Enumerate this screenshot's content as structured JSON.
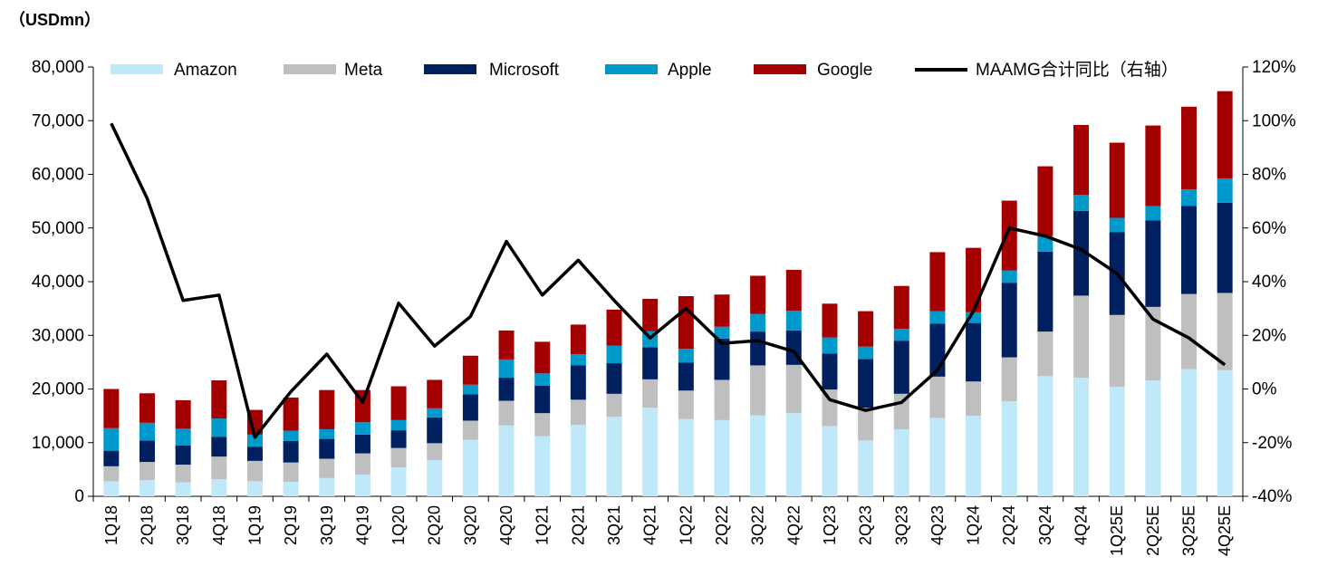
{
  "unit_label": "（USDmn）",
  "chart_data": {
    "type": "bar",
    "stacked": true,
    "categories": [
      "1Q18",
      "2Q18",
      "3Q18",
      "4Q18",
      "1Q19",
      "2Q19",
      "3Q19",
      "4Q19",
      "1Q20",
      "2Q20",
      "3Q20",
      "4Q20",
      "1Q21",
      "2Q21",
      "3Q21",
      "4Q21",
      "1Q22",
      "2Q22",
      "3Q22",
      "4Q22",
      "1Q23",
      "2Q23",
      "3Q23",
      "4Q23",
      "1Q24",
      "2Q24",
      "3Q24",
      "4Q24",
      "1Q25E",
      "2Q25E",
      "3Q25E",
      "4Q25E"
    ],
    "ylim_left": [
      0,
      80000
    ],
    "yticks_left": [
      "0",
      "10,000",
      "20,000",
      "30,000",
      "40,000",
      "50,000",
      "60,000",
      "70,000",
      "80,000"
    ],
    "ylim_right": [
      -40,
      120
    ],
    "yticks_right": [
      "-40%",
      "-20%",
      "0%",
      "20%",
      "40%",
      "60%",
      "80%",
      "100%",
      "120%"
    ],
    "series": [
      {
        "name": "Amazon",
        "color": "#BFE9F9",
        "values": [
          2800,
          3000,
          2600,
          3200,
          2800,
          2700,
          3400,
          4000,
          5400,
          6700,
          10500,
          13200,
          11200,
          13300,
          14800,
          16500,
          14400,
          14200,
          15100,
          15500,
          13100,
          10400,
          12500,
          14600,
          15000,
          17700,
          22400,
          22100,
          20400,
          21600,
          23700,
          23500
        ]
      },
      {
        "name": "Meta",
        "color": "#BFBFBF",
        "values": [
          2800,
          3400,
          3300,
          4200,
          3800,
          3600,
          3600,
          4000,
          3600,
          3200,
          3600,
          4600,
          4300,
          4700,
          4300,
          5300,
          5300,
          7500,
          9300,
          9000,
          6800,
          6100,
          6600,
          7700,
          6400,
          8200,
          8300,
          15300,
          13400,
          13700,
          14000,
          14400
        ]
      },
      {
        "name": "Microsoft",
        "color": "#002060",
        "values": [
          2900,
          4000,
          3600,
          3700,
          2600,
          4000,
          3700,
          3500,
          3300,
          4800,
          4900,
          4300,
          5100,
          6400,
          5700,
          6000,
          5200,
          7700,
          6300,
          6400,
          6700,
          9100,
          9900,
          9900,
          10900,
          13900,
          14900,
          15800,
          15400,
          16100,
          16400,
          16800
        ]
      },
      {
        "name": "Apple",
        "color": "#0099CC",
        "values": [
          4200,
          3300,
          3100,
          3400,
          2300,
          1900,
          1800,
          2300,
          1900,
          1700,
          1800,
          3400,
          2300,
          2100,
          3300,
          3000,
          2600,
          2200,
          3300,
          3700,
          3000,
          2300,
          2200,
          2300,
          2000,
          2300,
          2900,
          3000,
          2700,
          2700,
          3100,
          4500
        ]
      },
      {
        "name": "Google",
        "color": "#A50000",
        "values": [
          7300,
          5500,
          5300,
          7100,
          4600,
          6200,
          7300,
          6000,
          6300,
          5300,
          5400,
          5400,
          5900,
          5500,
          6700,
          6000,
          9800,
          6000,
          7100,
          7600,
          6300,
          6600,
          8000,
          11000,
          12000,
          13000,
          13000,
          13000,
          14000,
          15000,
          15400,
          16300
        ]
      }
    ],
    "line": {
      "name": "MAAMG合计同比（右轴）",
      "color": "#000000",
      "axis": "right",
      "values": [
        99,
        71,
        33,
        35,
        -18,
        -1,
        13,
        -5,
        32,
        16,
        27,
        55,
        35,
        48,
        33,
        19,
        30,
        17,
        18,
        14,
        -4,
        -8,
        -5,
        7,
        29,
        60,
        57,
        52,
        43,
        26,
        19,
        9
      ]
    },
    "legend": [
      "Amazon",
      "Meta",
      "Microsoft",
      "Apple",
      "Google",
      "MAAMG合计同比（右轴）"
    ]
  }
}
